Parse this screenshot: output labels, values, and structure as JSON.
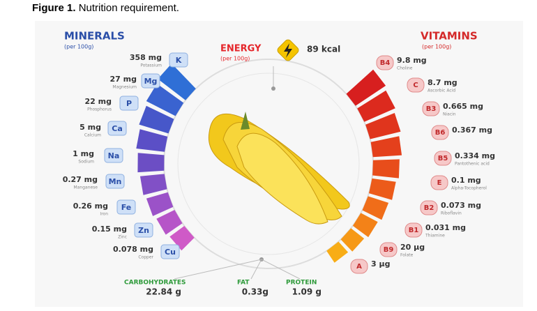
{
  "caption": {
    "label": "Figure 1.",
    "text": "Nutrition requirement."
  },
  "minerals": {
    "title": "MINERALS",
    "subtitle": "(per 100g)",
    "items": [
      {
        "amount": "358 mg",
        "symbol": "K",
        "name": "Potassium"
      },
      {
        "amount": "27 mg",
        "symbol": "Mg",
        "name": "Magnesium"
      },
      {
        "amount": "22 mg",
        "symbol": "P",
        "name": "Phosphorus"
      },
      {
        "amount": "5 mg",
        "symbol": "Ca",
        "name": "Calcium"
      },
      {
        "amount": "1 mg",
        "symbol": "Na",
        "name": "Sodium"
      },
      {
        "amount": "0.27 mg",
        "symbol": "Mn",
        "name": "Manganese"
      },
      {
        "amount": "0.26 mg",
        "symbol": "Fe",
        "name": "Iron"
      },
      {
        "amount": "0.15 mg",
        "symbol": "Zn",
        "name": "Zinc"
      },
      {
        "amount": "0.078 mg",
        "symbol": "Cu",
        "name": "Copper"
      }
    ]
  },
  "vitamins": {
    "title": "VITAMINS",
    "subtitle": "(per 100g)",
    "items": [
      {
        "amount": "9.8 mg",
        "symbol": "B4",
        "name": "Choline"
      },
      {
        "amount": "8.7 mg",
        "symbol": "C",
        "name": "Ascorbic Acid"
      },
      {
        "amount": "0.665 mg",
        "symbol": "B3",
        "name": "Niacin"
      },
      {
        "amount": "0.367 mg",
        "symbol": "B6"
      },
      {
        "amount": "0.334 mg",
        "symbol": "B5",
        "name": "Pantothenic acid"
      },
      {
        "amount": "0.1 mg",
        "symbol": "E",
        "name": "Alpha-Tocopherol"
      },
      {
        "amount": "0.073 mg",
        "symbol": "B2",
        "name": "Riboflavin"
      },
      {
        "amount": "0.031 mg",
        "symbol": "B1",
        "name": "Thiamine"
      },
      {
        "amount": "20 µg",
        "symbol": "B9",
        "name": "Folate"
      },
      {
        "amount": "3 µg",
        "symbol": "A"
      }
    ]
  },
  "energy": {
    "title": "ENERGY",
    "subtitle": "(per 100g)",
    "value": "89 kcal"
  },
  "macros": [
    {
      "name": "CARBOHYDRATES",
      "value": "22.84 g"
    },
    {
      "name": "FAT",
      "value": "0.33g"
    },
    {
      "name": "PROTEIN",
      "value": "1.09 g"
    }
  ]
}
